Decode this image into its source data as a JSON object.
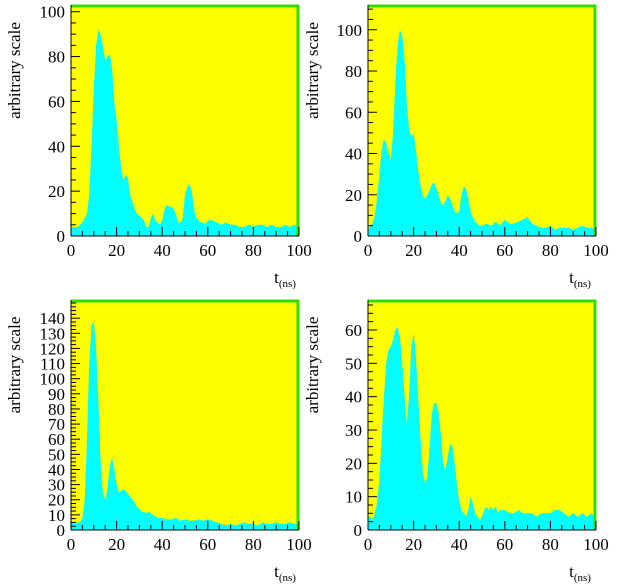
{
  "colors": {
    "frame_bg": "#ffff00",
    "fill": "#00ffff",
    "frame_edge": "#33dd00",
    "axis": "#000000"
  },
  "chart_data": [
    {
      "type": "area",
      "title": "",
      "xlabel": "t",
      "xlabel_sub": "(ns)",
      "ylabel": "arbitrary scale",
      "xlim": [
        0,
        100
      ],
      "ylim": [
        0,
        103
      ],
      "xticks": [
        0,
        20,
        40,
        60,
        80,
        100
      ],
      "xtick_labels": [
        "0",
        "20",
        "40",
        "60",
        "80",
        "100"
      ],
      "yticks": [
        0,
        20,
        40,
        60,
        80,
        100
      ],
      "ytick_labels": [
        "0",
        "20",
        "40",
        "60",
        "80",
        "100"
      ],
      "x": [
        0,
        1,
        2,
        3,
        4,
        5,
        6,
        7,
        8,
        9,
        10,
        11,
        12,
        13,
        14,
        15,
        16,
        17,
        18,
        19,
        20,
        21,
        22,
        23,
        24,
        25,
        26,
        27,
        28,
        29,
        30,
        31,
        32,
        33,
        34,
        35,
        36,
        37,
        38,
        39,
        40,
        41,
        42,
        43,
        44,
        45,
        46,
        47,
        48,
        49,
        50,
        51,
        52,
        53,
        54,
        55,
        56,
        57,
        58,
        59,
        60,
        62,
        64,
        66,
        68,
        70,
        72,
        74,
        76,
        78,
        80,
        82,
        84,
        86,
        88,
        90,
        92,
        94,
        96,
        98,
        100
      ],
      "values": [
        4,
        4,
        4,
        4,
        5,
        6,
        8,
        10,
        18,
        40,
        65,
        85,
        92,
        90,
        85,
        78,
        80,
        81,
        75,
        60,
        52,
        40,
        30,
        25,
        27,
        26,
        18,
        15,
        12,
        10,
        9,
        8,
        7,
        4,
        4,
        8,
        10,
        7,
        6,
        5,
        7,
        12,
        14,
        13,
        13,
        12,
        10,
        6,
        6,
        8,
        18,
        22,
        23,
        20,
        12,
        8,
        7,
        6,
        6,
        5,
        7,
        7,
        6,
        5,
        6,
        5,
        5,
        4,
        4,
        5,
        4,
        5,
        5,
        4,
        5,
        4,
        4,
        5,
        4,
        5,
        4
      ]
    },
    {
      "type": "area",
      "title": "",
      "xlabel": "t",
      "xlabel_sub": "(ns)",
      "ylabel": "arbitrary scale",
      "xlim": [
        0,
        100
      ],
      "ylim": [
        0,
        112
      ],
      "xticks": [
        0,
        20,
        40,
        60,
        80,
        100
      ],
      "xtick_labels": [
        "0",
        "20",
        "40",
        "60",
        "80",
        "100"
      ],
      "yticks": [
        0,
        20,
        40,
        60,
        80,
        100
      ],
      "ytick_labels": [
        "0",
        "20",
        "40",
        "60",
        "80",
        "100"
      ],
      "x": [
        0,
        1,
        2,
        3,
        4,
        5,
        6,
        7,
        8,
        9,
        10,
        11,
        12,
        13,
        14,
        15,
        16,
        17,
        18,
        19,
        20,
        21,
        22,
        23,
        24,
        25,
        26,
        27,
        28,
        29,
        30,
        31,
        32,
        33,
        34,
        35,
        36,
        37,
        38,
        39,
        40,
        41,
        42,
        43,
        44,
        45,
        46,
        47,
        48,
        49,
        50,
        52,
        54,
        56,
        58,
        60,
        62,
        64,
        66,
        68,
        70,
        72,
        74,
        76,
        78,
        80,
        82,
        84,
        86,
        88,
        90,
        92,
        94,
        96,
        98,
        100
      ],
      "values": [
        3,
        5,
        6,
        10,
        18,
        30,
        42,
        47,
        45,
        40,
        37,
        50,
        75,
        92,
        100,
        97,
        85,
        65,
        52,
        48,
        50,
        42,
        32,
        25,
        20,
        18,
        20,
        22,
        25,
        26,
        23,
        20,
        16,
        15,
        17,
        20,
        18,
        15,
        12,
        11,
        12,
        20,
        24,
        23,
        18,
        12,
        9,
        7,
        6,
        5,
        5,
        6,
        5,
        7,
        5,
        8,
        6,
        6,
        7,
        8,
        9,
        6,
        5,
        4,
        4,
        5,
        3,
        4,
        4,
        4,
        3,
        4,
        5,
        4,
        4,
        3
      ]
    },
    {
      "type": "area",
      "title": "",
      "xlabel": "t",
      "xlabel_sub": "(ns)",
      "ylabel": "arbitrary scale",
      "xlim": [
        0,
        100
      ],
      "ylim": [
        0,
        152
      ],
      "xticks": [
        0,
        20,
        40,
        60,
        80,
        100
      ],
      "xtick_labels": [
        "0",
        "20",
        "40",
        "60",
        "80",
        "100"
      ],
      "yticks": [
        0,
        10,
        20,
        30,
        40,
        50,
        60,
        70,
        80,
        90,
        100,
        110,
        120,
        130,
        140
      ],
      "ytick_labels": [
        "0",
        "10",
        "20",
        "30",
        "40",
        "50",
        "60",
        "70",
        "80",
        "90",
        "100",
        "110",
        "120",
        "130",
        "140"
      ],
      "x": [
        0,
        1,
        2,
        3,
        4,
        5,
        6,
        7,
        8,
        9,
        10,
        11,
        12,
        13,
        14,
        15,
        16,
        17,
        18,
        19,
        20,
        21,
        22,
        23,
        24,
        25,
        26,
        27,
        28,
        29,
        30,
        31,
        32,
        33,
        34,
        35,
        36,
        37,
        38,
        39,
        40,
        42,
        44,
        46,
        48,
        50,
        52,
        54,
        56,
        58,
        60,
        62,
        64,
        66,
        68,
        70,
        72,
        74,
        76,
        78,
        80,
        82,
        84,
        86,
        88,
        90,
        92,
        94,
        96,
        98,
        100
      ],
      "values": [
        5,
        5,
        4,
        5,
        5,
        8,
        20,
        60,
        110,
        135,
        138,
        120,
        85,
        45,
        25,
        20,
        28,
        42,
        48,
        40,
        30,
        25,
        26,
        27,
        26,
        24,
        22,
        20,
        18,
        15,
        14,
        12,
        12,
        11,
        12,
        11,
        10,
        9,
        8,
        8,
        8,
        7,
        7,
        8,
        6,
        7,
        6,
        6,
        7,
        6,
        7,
        6,
        5,
        4,
        3,
        4,
        3,
        4,
        5,
        4,
        4,
        3,
        5,
        4,
        4,
        5,
        4,
        4,
        5,
        4,
        4
      ]
    },
    {
      "type": "area",
      "title": "",
      "xlabel": "t",
      "xlabel_sub": "(ns)",
      "ylabel": "arbitrary scale",
      "xlim": [
        0,
        100
      ],
      "ylim": [
        0,
        69
      ],
      "xticks": [
        0,
        20,
        40,
        60,
        80,
        100
      ],
      "xtick_labels": [
        "0",
        "20",
        "40",
        "60",
        "80",
        "100"
      ],
      "yticks": [
        0,
        10,
        20,
        30,
        40,
        50,
        60
      ],
      "ytick_labels": [
        "0",
        "10",
        "20",
        "30",
        "40",
        "50",
        "60"
      ],
      "x": [
        0,
        1,
        2,
        3,
        4,
        5,
        6,
        7,
        8,
        9,
        10,
        11,
        12,
        13,
        14,
        15,
        16,
        17,
        18,
        19,
        20,
        21,
        22,
        23,
        24,
        25,
        26,
        27,
        28,
        29,
        30,
        31,
        32,
        33,
        34,
        35,
        36,
        37,
        38,
        39,
        40,
        41,
        42,
        43,
        44,
        45,
        46,
        47,
        48,
        49,
        50,
        51,
        52,
        53,
        54,
        55,
        56,
        57,
        58,
        60,
        62,
        64,
        66,
        68,
        70,
        72,
        74,
        76,
        78,
        80,
        82,
        84,
        86,
        88,
        90,
        92,
        94,
        96,
        98,
        100
      ],
      "values": [
        4,
        4,
        3,
        5,
        8,
        15,
        28,
        40,
        50,
        54,
        55,
        57,
        60,
        61,
        58,
        50,
        40,
        32,
        40,
        55,
        59,
        52,
        40,
        28,
        18,
        14,
        16,
        25,
        35,
        38,
        38,
        35,
        28,
        20,
        18,
        22,
        26,
        25,
        20,
        14,
        9,
        6,
        5,
        4,
        6,
        10,
        8,
        5,
        4,
        3,
        4,
        6,
        7,
        6,
        7,
        6,
        7,
        5,
        6,
        6,
        5,
        5,
        6,
        5,
        5,
        5,
        4,
        5,
        5,
        5,
        6,
        6,
        5,
        4,
        5,
        4,
        5,
        4,
        5,
        4
      ]
    }
  ]
}
